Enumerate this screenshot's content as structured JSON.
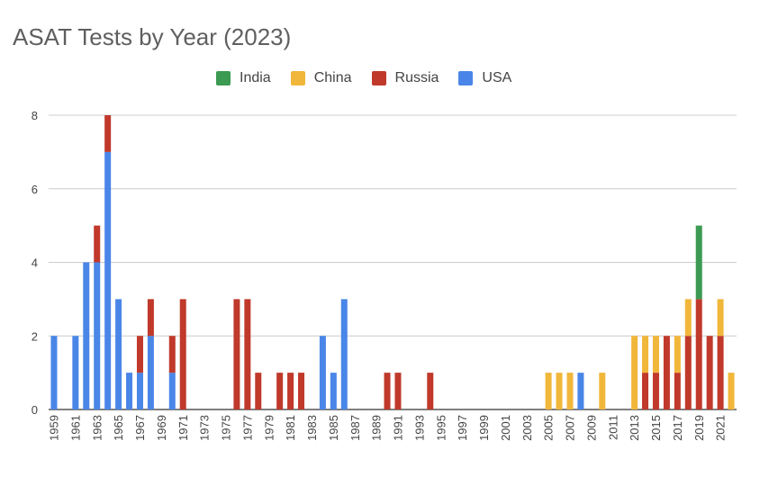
{
  "chart_data": {
    "type": "bar",
    "stacked": true,
    "title": "ASAT Tests by Year (2023)",
    "xlabel": "",
    "ylabel": "",
    "ylim": [
      0,
      8
    ],
    "yticks": [
      "0",
      "2",
      "4",
      "6",
      "8"
    ],
    "grid": true,
    "legend_position": "top",
    "categories": [
      "1959",
      "1960",
      "1961",
      "1962",
      "1963",
      "1964",
      "1965",
      "1966",
      "1967",
      "1968",
      "1969",
      "1970",
      "1971",
      "1972",
      "1973",
      "1974",
      "1975",
      "1976",
      "1977",
      "1978",
      "1979",
      "1980",
      "1981",
      "1982",
      "1983",
      "1984",
      "1985",
      "1986",
      "1987",
      "1988",
      "1989",
      "1990",
      "1991",
      "1992",
      "1993",
      "1994",
      "1995",
      "1996",
      "1997",
      "1998",
      "1999",
      "2000",
      "2001",
      "2002",
      "2003",
      "2004",
      "2005",
      "2006",
      "2007",
      "2008",
      "2009",
      "2010",
      "2011",
      "2012",
      "2013",
      "2014",
      "2015",
      "2016",
      "2017",
      "2018",
      "2019",
      "2020",
      "2021",
      "2022"
    ],
    "tick_labels": [
      "1959",
      "1961",
      "1963",
      "1965",
      "1967",
      "1969",
      "1971",
      "1973",
      "1975",
      "1977",
      "1979",
      "1981",
      "1983",
      "1985",
      "1987",
      "1989",
      "1991",
      "1993",
      "1995",
      "1997",
      "1999",
      "2001",
      "2003",
      "2005",
      "2007",
      "2009",
      "2011",
      "2013",
      "2015",
      "2017",
      "2019",
      "2021"
    ],
    "series": [
      {
        "name": "USA",
        "color": "#4a86e8",
        "values": [
          2,
          0,
          2,
          4,
          4,
          7,
          3,
          1,
          1,
          2,
          0,
          1,
          0,
          0,
          0,
          0,
          0,
          0,
          0,
          0,
          0,
          0,
          0,
          0,
          0,
          2,
          1,
          3,
          0,
          0,
          0,
          0,
          0,
          0,
          0,
          0,
          0,
          0,
          0,
          0,
          0,
          0,
          0,
          0,
          0,
          0,
          0,
          0,
          0,
          1,
          0,
          0,
          0,
          0,
          0,
          0,
          0,
          0,
          0,
          0,
          0,
          0,
          0,
          0
        ]
      },
      {
        "name": "Russia",
        "color": "#c0392b",
        "values": [
          0,
          0,
          0,
          0,
          1,
          1,
          0,
          0,
          1,
          1,
          0,
          1,
          3,
          0,
          0,
          0,
          0,
          3,
          3,
          1,
          0,
          1,
          1,
          1,
          0,
          0,
          0,
          0,
          0,
          0,
          0,
          1,
          1,
          0,
          0,
          1,
          0,
          0,
          0,
          0,
          0,
          0,
          0,
          0,
          0,
          0,
          0,
          0,
          0,
          0,
          0,
          0,
          0,
          0,
          0,
          1,
          1,
          2,
          1,
          2,
          3,
          2,
          2,
          0
        ]
      },
      {
        "name": "China",
        "color": "#f1b73a",
        "values": [
          0,
          0,
          0,
          0,
          0,
          0,
          0,
          0,
          0,
          0,
          0,
          0,
          0,
          0,
          0,
          0,
          0,
          0,
          0,
          0,
          0,
          0,
          0,
          0,
          0,
          0,
          0,
          0,
          0,
          0,
          0,
          0,
          0,
          0,
          0,
          0,
          0,
          0,
          0,
          0,
          0,
          0,
          0,
          0,
          0,
          0,
          1,
          1,
          1,
          0,
          0,
          1,
          0,
          0,
          2,
          1,
          1,
          0,
          1,
          1,
          0,
          0,
          1,
          1
        ]
      },
      {
        "name": "India",
        "color": "#3c9a52",
        "values": [
          0,
          0,
          0,
          0,
          0,
          0,
          0,
          0,
          0,
          0,
          0,
          0,
          0,
          0,
          0,
          0,
          0,
          0,
          0,
          0,
          0,
          0,
          0,
          0,
          0,
          0,
          0,
          0,
          0,
          0,
          0,
          0,
          0,
          0,
          0,
          0,
          0,
          0,
          0,
          0,
          0,
          0,
          0,
          0,
          0,
          0,
          0,
          0,
          0,
          0,
          0,
          0,
          0,
          0,
          0,
          0,
          0,
          0,
          0,
          0,
          2,
          0,
          0,
          0
        ]
      }
    ]
  },
  "legend": [
    {
      "label": "India",
      "color": "#3c9a52"
    },
    {
      "label": "China",
      "color": "#f1b73a"
    },
    {
      "label": "Russia",
      "color": "#c0392b"
    },
    {
      "label": "USA",
      "color": "#4a86e8"
    }
  ]
}
